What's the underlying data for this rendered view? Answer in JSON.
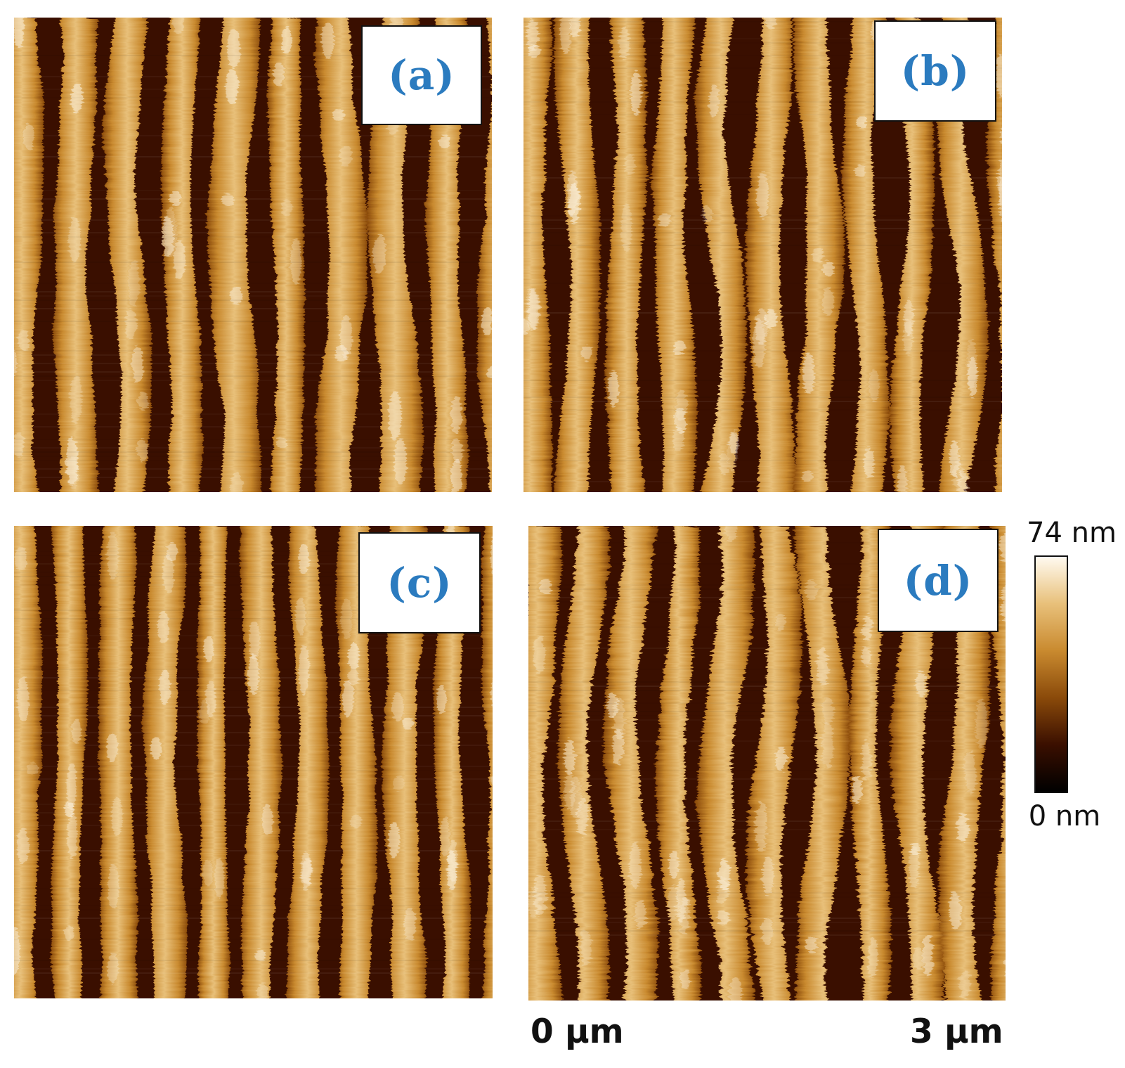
{
  "panels": [
    {
      "id": "a",
      "label": "(a)"
    },
    {
      "id": "b",
      "label": "(b)"
    },
    {
      "id": "c",
      "label": "(c)"
    },
    {
      "id": "d",
      "label": "(d)"
    }
  ],
  "colors": {
    "label_text": "#2b7bbf",
    "colormap": [
      "#000000",
      "#3a0f00",
      "#8a4a0a",
      "#c98a2f",
      "#e8c07a",
      "#fffaf0"
    ]
  },
  "colorbar": {
    "max_label": "74 nm",
    "min_label": "0 nm"
  },
  "scale": {
    "start_label": "0 μm",
    "end_label": "3 μm"
  }
}
